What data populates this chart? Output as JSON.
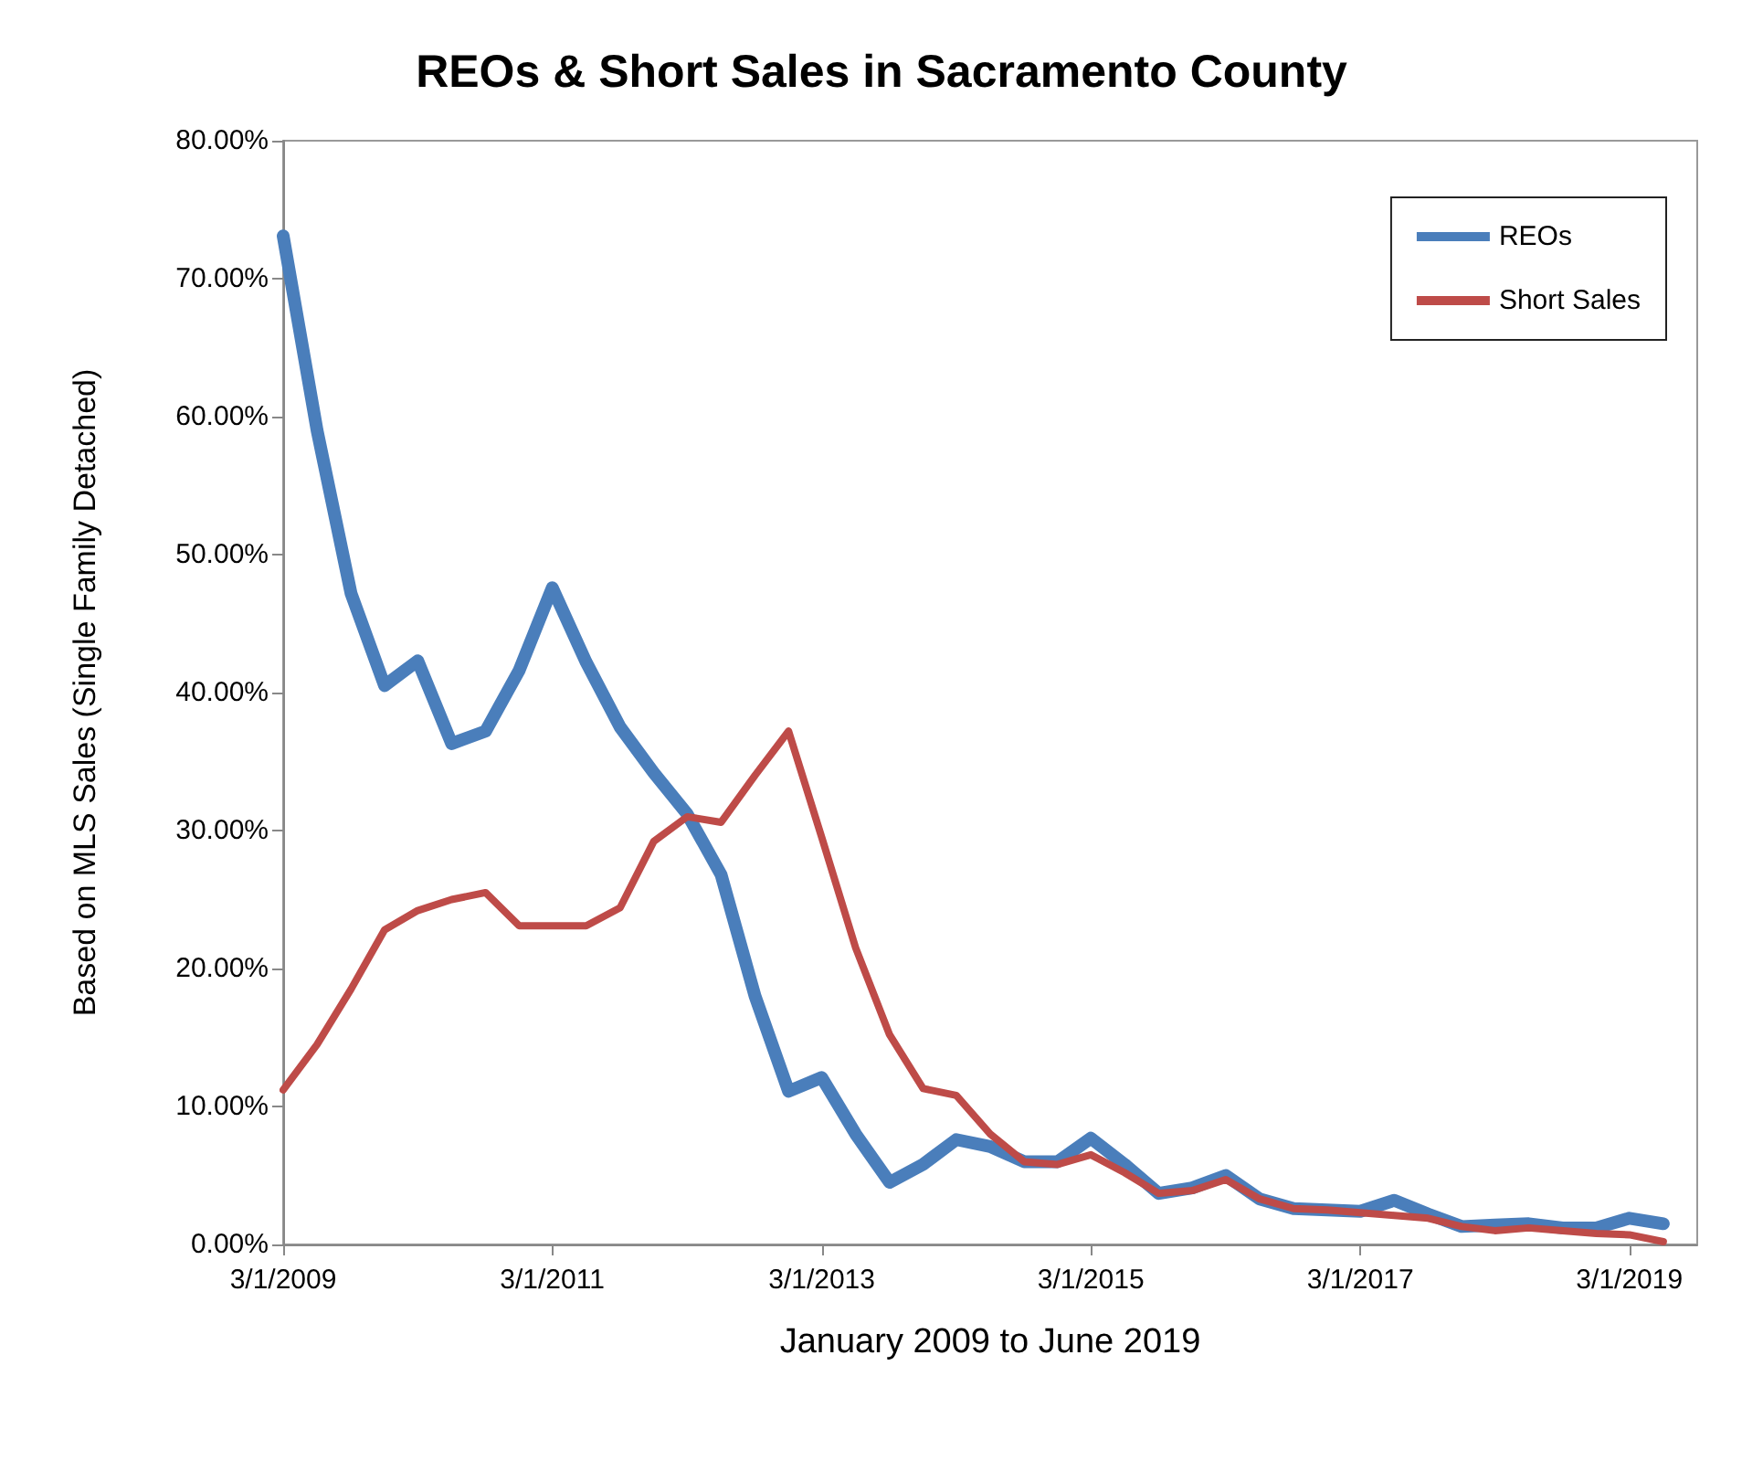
{
  "chart_data": {
    "type": "line",
    "title": "REOs & Short Sales in Sacramento County",
    "xlabel": "January 2009 to June 2019",
    "ylabel": "Based on MLS Sales (Single Family Detached)",
    "x": [
      "2009-03-01",
      "2009-06-01",
      "2009-09-01",
      "2009-12-01",
      "2010-03-01",
      "2010-06-01",
      "2010-09-01",
      "2010-12-01",
      "2011-03-01",
      "2011-06-01",
      "2011-09-01",
      "2011-12-01",
      "2012-03-01",
      "2012-06-01",
      "2012-09-01",
      "2012-12-01",
      "2013-03-01",
      "2013-06-01",
      "2013-09-01",
      "2013-12-01",
      "2014-03-01",
      "2014-06-01",
      "2014-09-01",
      "2014-12-01",
      "2015-03-01",
      "2015-06-01",
      "2015-09-01",
      "2015-12-01",
      "2016-03-01",
      "2016-06-01",
      "2016-09-01",
      "2016-12-01",
      "2017-03-01",
      "2017-06-01",
      "2017-09-01",
      "2017-12-01",
      "2018-03-01",
      "2018-06-01",
      "2018-09-01",
      "2018-12-01",
      "2019-03-01",
      "2019-06-01"
    ],
    "series": [
      {
        "name": "REOs",
        "color": "#4a7ebb",
        "values": [
          73.1,
          59,
          47.2,
          40.5,
          42.3,
          36.3,
          37.2,
          41.6,
          47.6,
          42.2,
          37.5,
          34.2,
          31.2,
          26.8,
          18,
          11.1,
          12.1,
          8,
          4.5,
          5.8,
          7.6,
          7.1,
          6,
          6,
          7.7,
          5.8,
          3.7,
          4.1,
          5,
          3.3,
          2.6,
          2.5,
          2.4,
          3.2,
          2.2,
          1.3,
          1.4,
          1.5,
          1.2,
          1.2,
          1.9,
          1.5
        ]
      },
      {
        "name": "Short Sales",
        "color": "#be4b48",
        "values": [
          11.2,
          14.5,
          18.5,
          22.8,
          24.2,
          25,
          25.5,
          23.1,
          23.1,
          23.1,
          24.4,
          29.2,
          31,
          30.6,
          34,
          37.2,
          29.5,
          21.5,
          15.2,
          11.3,
          10.8,
          8,
          6,
          5.8,
          6.5,
          5.2,
          3.7,
          3.9,
          4.7,
          3.3,
          2.6,
          2.5,
          2.3,
          2.1,
          1.9,
          1.3,
          1,
          1.2,
          1,
          0.8,
          0.7,
          0.2
        ]
      }
    ],
    "xlim": [
      "2009-03-01",
      "2019-09-01"
    ],
    "xticks": [
      {
        "value": "2009-03-01",
        "label": "3/1/2009"
      },
      {
        "value": "2011-03-01",
        "label": "3/1/2011"
      },
      {
        "value": "2013-03-01",
        "label": "3/1/2013"
      },
      {
        "value": "2015-03-01",
        "label": "3/1/2015"
      },
      {
        "value": "2017-03-01",
        "label": "3/1/2017"
      },
      {
        "value": "2019-03-01",
        "label": "3/1/2019"
      }
    ],
    "ylim": [
      0,
      80
    ],
    "yticks": [
      {
        "value": 0,
        "label": "0.00%"
      },
      {
        "value": 10,
        "label": "10.00%"
      },
      {
        "value": 20,
        "label": "20.00%"
      },
      {
        "value": 30,
        "label": "30.00%"
      },
      {
        "value": 40,
        "label": "40.00%"
      },
      {
        "value": 50,
        "label": "50.00%"
      },
      {
        "value": 60,
        "label": "60.00%"
      },
      {
        "value": 70,
        "label": "70.00%"
      },
      {
        "value": 80,
        "label": "80.00%"
      }
    ],
    "grid": false,
    "legend": "top right",
    "marker": "none",
    "line_style": "solid"
  }
}
